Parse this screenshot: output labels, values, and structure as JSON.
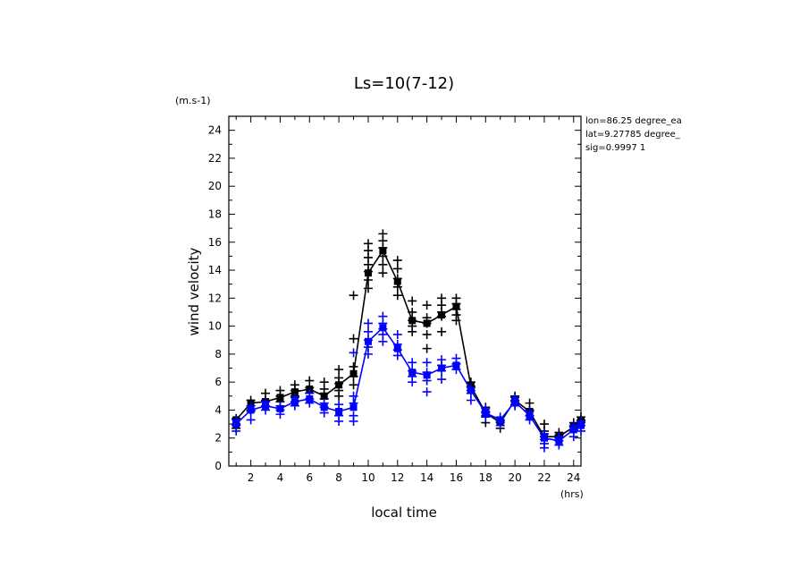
{
  "chart_data": {
    "type": "line",
    "title": "Ls=10(7-12)",
    "xlabel": "local time",
    "ylabel": "wind velocity",
    "x_unit": "(hrs)",
    "y_unit": "(m.s-1)",
    "xlim": [
      0.5,
      24.5
    ],
    "ylim": [
      0,
      25
    ],
    "x_ticks": [
      2,
      4,
      6,
      8,
      10,
      12,
      14,
      16,
      18,
      20,
      22,
      24
    ],
    "y_ticks": [
      0,
      2,
      4,
      6,
      8,
      10,
      12,
      14,
      16,
      18,
      20,
      22,
      24
    ],
    "grid": false,
    "annotations": [
      "lon=86.25 degree_ea",
      "lat=9.27785 degree_",
      "sig=0.9997 1"
    ],
    "x": [
      1,
      2,
      3,
      4,
      5,
      6,
      7,
      8,
      9,
      10,
      11,
      12,
      13,
      14,
      15,
      16,
      17,
      18,
      19,
      20,
      21,
      22,
      23,
      24,
      24.5
    ],
    "series": [
      {
        "color": "#000000",
        "values": [
          3.3,
          4.5,
          4.6,
          4.9,
          5.3,
          5.5,
          5.0,
          5.8,
          6.6,
          13.8,
          15.4,
          13.2,
          10.4,
          10.2,
          10.8,
          11.4,
          5.7,
          3.8,
          3.1,
          4.7,
          3.9,
          2.1,
          2.1,
          2.8,
          3.3
        ],
        "markers": [
          [
            1,
            3.4
          ],
          [
            1,
            3.0
          ],
          [
            1,
            2.7
          ],
          [
            2,
            4.7
          ],
          [
            2,
            4.3
          ],
          [
            2,
            4.0
          ],
          [
            3,
            5.2
          ],
          [
            3,
            4.7
          ],
          [
            3,
            4.3
          ],
          [
            4,
            5.4
          ],
          [
            4,
            5.0
          ],
          [
            4,
            4.6
          ],
          [
            5,
            5.8
          ],
          [
            5,
            5.4
          ],
          [
            5,
            5.0
          ],
          [
            6,
            6.1
          ],
          [
            6,
            5.6
          ],
          [
            6,
            5.2
          ],
          [
            7,
            6.0
          ],
          [
            7,
            5.5
          ],
          [
            7,
            5.2
          ],
          [
            7,
            4.8
          ],
          [
            8,
            6.9
          ],
          [
            8,
            6.3
          ],
          [
            8,
            5.9
          ],
          [
            8,
            5.4
          ],
          [
            8,
            5.0
          ],
          [
            9,
            12.2
          ],
          [
            9,
            9.1
          ],
          [
            9,
            7.1
          ],
          [
            9,
            6.4
          ],
          [
            9,
            5.8
          ],
          [
            10,
            15.9
          ],
          [
            10,
            15.4
          ],
          [
            10,
            14.9
          ],
          [
            10,
            14.4
          ],
          [
            10,
            13.9
          ],
          [
            10,
            13.3
          ],
          [
            10,
            12.7
          ],
          [
            11,
            16.6
          ],
          [
            11,
            16.1
          ],
          [
            11,
            15.6
          ],
          [
            11,
            15.0
          ],
          [
            11,
            14.4
          ],
          [
            11,
            13.8
          ],
          [
            12,
            14.7
          ],
          [
            12,
            14.1
          ],
          [
            12,
            13.4
          ],
          [
            12,
            12.8
          ],
          [
            12,
            12.2
          ],
          [
            13,
            11.8
          ],
          [
            13,
            11.0
          ],
          [
            13,
            10.4
          ],
          [
            13,
            10.0
          ],
          [
            13,
            9.6
          ],
          [
            14,
            11.5
          ],
          [
            14,
            10.6
          ],
          [
            14,
            10.2
          ],
          [
            14,
            9.4
          ],
          [
            14,
            8.4
          ],
          [
            15,
            12.0
          ],
          [
            15,
            11.5
          ],
          [
            15,
            11.0
          ],
          [
            15,
            10.7
          ],
          [
            15,
            9.6
          ],
          [
            16,
            12.0
          ],
          [
            16,
            11.6
          ],
          [
            16,
            11.2
          ],
          [
            16,
            10.8
          ],
          [
            16,
            10.4
          ],
          [
            17,
            6.0
          ],
          [
            17,
            5.7
          ],
          [
            17,
            5.4
          ],
          [
            18,
            4.2
          ],
          [
            18,
            3.9
          ],
          [
            18,
            3.6
          ],
          [
            18,
            3.1
          ],
          [
            19,
            3.3
          ],
          [
            19,
            3.1
          ],
          [
            19,
            2.7
          ],
          [
            20,
            5.0
          ],
          [
            20,
            4.7
          ],
          [
            20,
            4.4
          ],
          [
            21,
            4.5
          ],
          [
            21,
            4.0
          ],
          [
            21,
            3.6
          ],
          [
            22,
            3.0
          ],
          [
            22,
            2.5
          ],
          [
            22,
            2.1
          ],
          [
            23,
            2.4
          ],
          [
            23,
            2.2
          ],
          [
            23,
            2.0
          ],
          [
            24,
            3.1
          ],
          [
            24,
            2.8
          ],
          [
            24,
            2.6
          ],
          [
            24.5,
            3.5
          ],
          [
            24.5,
            3.3
          ],
          [
            24.5,
            3.1
          ]
        ]
      },
      {
        "color": "#0000ff",
        "values": [
          3.0,
          4.0,
          4.3,
          4.1,
          4.6,
          4.8,
          4.2,
          3.9,
          4.2,
          8.9,
          9.9,
          8.4,
          6.7,
          6.5,
          7.0,
          7.2,
          5.4,
          3.8,
          3.3,
          4.6,
          3.6,
          2.0,
          1.8,
          2.6,
          2.9
        ],
        "markers": [
          [
            1,
            3.3
          ],
          [
            1,
            2.9
          ],
          [
            1,
            2.5
          ],
          [
            2,
            4.3
          ],
          [
            2,
            3.9
          ],
          [
            2,
            3.3
          ],
          [
            3,
            4.6
          ],
          [
            3,
            4.3
          ],
          [
            3,
            4.0
          ],
          [
            4,
            4.3
          ],
          [
            4,
            4.0
          ],
          [
            4,
            3.7
          ],
          [
            5,
            4.9
          ],
          [
            5,
            4.6
          ],
          [
            5,
            4.3
          ],
          [
            6,
            5.2
          ],
          [
            6,
            4.8
          ],
          [
            6,
            4.5
          ],
          [
            7,
            4.5
          ],
          [
            7,
            4.2
          ],
          [
            7,
            3.8
          ],
          [
            8,
            4.4
          ],
          [
            8,
            4.0
          ],
          [
            8,
            3.6
          ],
          [
            8,
            3.2
          ],
          [
            9,
            8.1
          ],
          [
            9,
            5.0
          ],
          [
            9,
            4.5
          ],
          [
            9,
            3.6
          ],
          [
            9,
            3.2
          ],
          [
            10,
            10.2
          ],
          [
            10,
            9.6
          ],
          [
            10,
            9.0
          ],
          [
            10,
            8.5
          ],
          [
            10,
            8.0
          ],
          [
            11,
            10.7
          ],
          [
            11,
            10.2
          ],
          [
            11,
            9.8
          ],
          [
            11,
            9.4
          ],
          [
            11,
            8.9
          ],
          [
            12,
            9.4
          ],
          [
            12,
            8.7
          ],
          [
            12,
            8.3
          ],
          [
            12,
            7.9
          ],
          [
            13,
            7.4
          ],
          [
            13,
            6.8
          ],
          [
            13,
            6.4
          ],
          [
            13,
            6.0
          ],
          [
            14,
            7.4
          ],
          [
            14,
            6.7
          ],
          [
            14,
            6.1
          ],
          [
            14,
            5.3
          ],
          [
            15,
            7.6
          ],
          [
            15,
            7.2
          ],
          [
            15,
            6.8
          ],
          [
            15,
            6.2
          ],
          [
            16,
            7.7
          ],
          [
            16,
            7.3
          ],
          [
            16,
            6.9
          ],
          [
            17,
            5.6
          ],
          [
            17,
            5.2
          ],
          [
            17,
            4.7
          ],
          [
            18,
            4.1
          ],
          [
            18,
            3.8
          ],
          [
            18,
            3.5
          ],
          [
            19,
            3.5
          ],
          [
            19,
            3.2
          ],
          [
            19,
            2.9
          ],
          [
            20,
            4.9
          ],
          [
            20,
            4.6
          ],
          [
            20,
            4.3
          ],
          [
            21,
            3.9
          ],
          [
            21,
            3.6
          ],
          [
            21,
            3.3
          ],
          [
            22,
            2.3
          ],
          [
            22,
            1.9
          ],
          [
            22,
            1.6
          ],
          [
            22,
            1.3
          ],
          [
            23,
            2.1
          ],
          [
            23,
            1.8
          ],
          [
            23,
            1.5
          ],
          [
            24,
            2.9
          ],
          [
            24,
            2.5
          ],
          [
            24,
            2.1
          ],
          [
            24.5,
            3.2
          ],
          [
            24.5,
            2.9
          ],
          [
            24.5,
            2.5
          ]
        ]
      }
    ]
  }
}
